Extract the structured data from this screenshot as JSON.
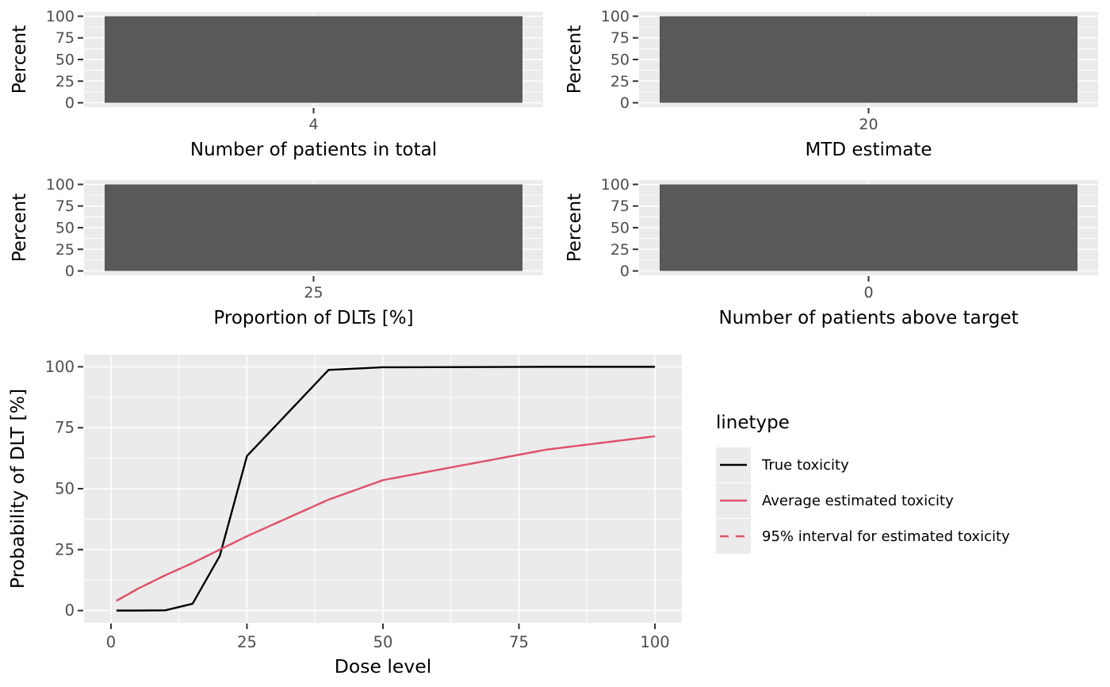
{
  "figure": {
    "background": "#FFFFFF",
    "panel_bg": "#EBEBEB",
    "grid_color": "#FFFFFF",
    "bar_fill": "#595959",
    "tick_mark_color": "#333333",
    "tick_label_color": "#4D4D4D",
    "axis_title_color": "#000000"
  },
  "chart_data": [
    {
      "type": "bar",
      "xlabel": "Number of patients in total",
      "ylabel": "Percent",
      "categories": [
        "4"
      ],
      "values": [
        100
      ],
      "ylim": [
        0,
        100
      ],
      "yticks": [
        0,
        25,
        50,
        75,
        100
      ],
      "grid": true
    },
    {
      "type": "bar",
      "xlabel": "MTD estimate",
      "ylabel": "Percent",
      "categories": [
        "20"
      ],
      "values": [
        100
      ],
      "ylim": [
        0,
        100
      ],
      "yticks": [
        0,
        25,
        50,
        75,
        100
      ],
      "grid": true
    },
    {
      "type": "bar",
      "xlabel": "Proportion of DLTs [%]",
      "ylabel": "Percent",
      "categories": [
        "25"
      ],
      "values": [
        100
      ],
      "ylim": [
        0,
        100
      ],
      "yticks": [
        0,
        25,
        50,
        75,
        100
      ],
      "grid": true
    },
    {
      "type": "bar",
      "xlabel": "Number of patients above target",
      "ylabel": "Percent",
      "categories": [
        "0"
      ],
      "values": [
        100
      ],
      "ylim": [
        0,
        100
      ],
      "yticks": [
        0,
        25,
        50,
        75,
        100
      ],
      "grid": true
    },
    {
      "type": "line",
      "xlabel": "Dose level",
      "ylabel": "Probability of DLT [%]",
      "xlim": [
        0,
        100
      ],
      "ylim": [
        0,
        100
      ],
      "xticks": [
        0,
        25,
        50,
        75,
        100
      ],
      "yticks": [
        0,
        25,
        50,
        75,
        100
      ],
      "grid": true,
      "legend_position": "right",
      "x": [
        1,
        3,
        5,
        10,
        15,
        20,
        25,
        40,
        50,
        80,
        100
      ],
      "series": [
        {
          "name": "True toxicity",
          "color": "#000000",
          "linetype": "solid",
          "y": [
            0,
            0,
            0,
            0.1,
            2.8,
            22.4,
            63.4,
            98.7,
            99.8,
            100,
            100
          ]
        },
        {
          "name": "Average estimated toxicity",
          "color": "#DF536B",
          "linetype": "solid",
          "y": [
            4,
            6.5,
            9,
            14.5,
            19.5,
            25,
            30.5,
            45.5,
            53.5,
            66,
            71.5
          ]
        },
        {
          "name": "95% interval for estimated toxicity",
          "color": "#DF536B",
          "linetype": "dashed",
          "y": [
            4,
            6.5,
            9,
            14.5,
            19.5,
            25,
            30.5,
            45.5,
            53.5,
            66,
            71.5
          ]
        }
      ]
    }
  ],
  "legend": {
    "title": "linetype",
    "key_bg": "#EBEBEB",
    "entries": [
      {
        "label": "True toxicity",
        "color": "#000000",
        "dasharray": "none"
      },
      {
        "label": "Average estimated toxicity",
        "color": "#DF536B",
        "dasharray": "none"
      },
      {
        "label": "95% interval for estimated toxicity",
        "color": "#DF536B",
        "dasharray": "11 9"
      }
    ]
  }
}
